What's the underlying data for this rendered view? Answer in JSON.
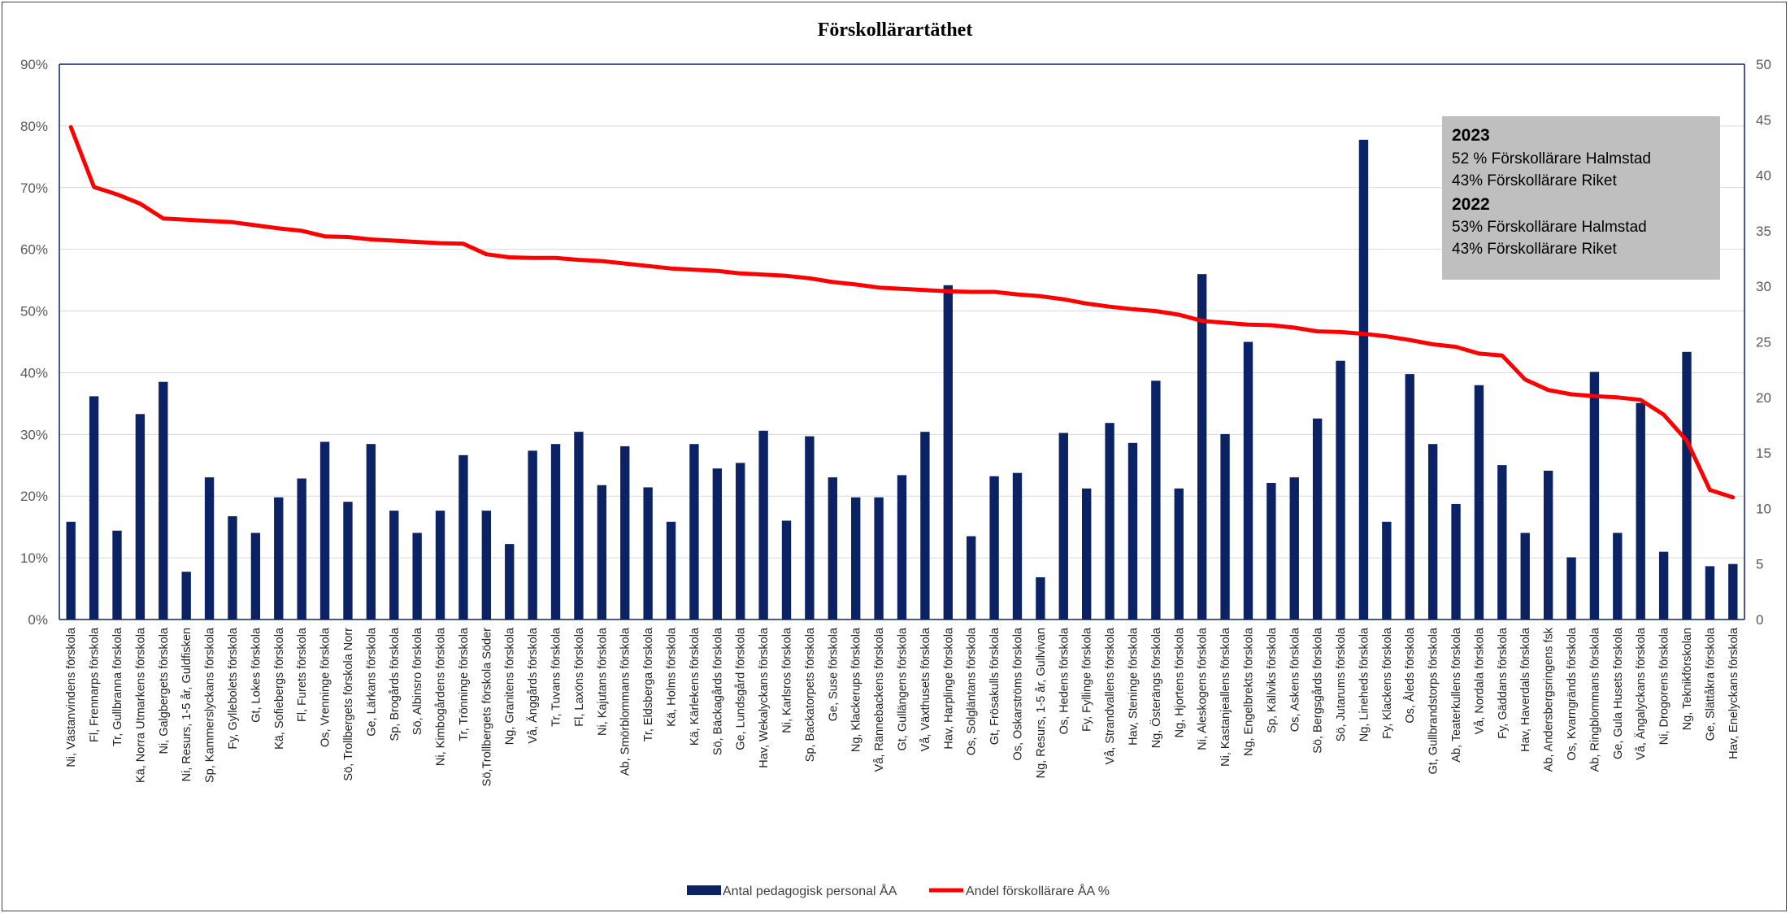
{
  "chart_data": {
    "type": "bar+line",
    "title": "Förskollärartäthet",
    "left_axis": {
      "ticks": [
        "0%",
        "10%",
        "20%",
        "30%",
        "40%",
        "50%",
        "60%",
        "70%",
        "80%",
        "90%"
      ],
      "range": [
        0,
        90
      ],
      "unit": "%"
    },
    "right_axis": {
      "ticks": [
        "0",
        "5",
        "10",
        "15",
        "20",
        "25",
        "30",
        "35",
        "40",
        "45",
        "50"
      ],
      "range": [
        0,
        50
      ]
    },
    "grid": true,
    "legend_position": "bottom",
    "categories": [
      "Ni, Västanvindens förskola",
      "Fl, Frennarps förskola",
      "Tr, Gullbranna förskola",
      "Kä, Norra Utmarkens förskola",
      "Ni, Galgbergets förskola",
      "Ni, Resurs, 1-5 år, Guldfisken",
      "Sp, Kammerslyckans förskola",
      "Fy, Gyllebolets förskola",
      "Gt, Lokes förskola",
      "Kä, Sofiebergs förskola",
      "Fl, Furets förskola",
      "Os, Vrenninge förskola",
      "Sö, Trollbergets förskola Norr",
      "Ge, Lärkans förskola",
      "Sp, Brogårds förskola",
      "Sö, Albinsro förskola",
      "Ni, Kimbogårdens förskola",
      "Tr, Trönninge förskola",
      "Sö,Trollbergets förskola Söder",
      "Ng, Granitens förskola",
      "Vå, Änggårds förskola",
      "Tr, Tuvans förskola",
      "Fl, Laxöns förskola",
      "Ni, Kajutans förskola",
      "Ab, Smörblommans förskola",
      "Tr, Eldsberga förskola",
      "Kä, Holms förskola",
      "Kä, Kärlekens förskola",
      "Sö, Bäckagårds förskola",
      "Ge, Lundsgård förskola",
      "Hav, Wekalyckans förskola",
      "Ni, Karlsros förskola",
      "Sp, Backatorpets förskola",
      "Ge, Suse förskola",
      "Ng, Klackerups förskola",
      "Vå, Rännebackens förskola",
      "Gt, Gullängens förskola",
      "Vå, Växthusets förskola",
      "Hav, Harplinge förskola",
      "Os, Solgläntans förskola",
      "Gt, Frösakulls förskola",
      "Os, Oskarströms förskola",
      "Ng, Resurs, 1-5 år, Gullvivan",
      "Os, Hedens förskola",
      "Fy, Fyllinge förskola",
      "Vå, Strandvallens förskola",
      "Hav, Steninge förskola",
      "Ng, Österängs förskola",
      "Ng, Hjortens förskola",
      "Ni, Aleskogens förskola",
      "Ni, Kastanjeallens förskola",
      "Ng, Engelbrekts förskola",
      "Sp, Källviks förskola",
      "Os, Askens förskola",
      "Sö, Bergsgårds förskola",
      "Sö, Jutarums förskola",
      "Ng, Lineheds förskola",
      "Fy, Klackens förskola",
      "Os, Åleds förskola",
      "Gt, Gullbrandstorps förskola",
      "Ab, Teaterkullens förskola",
      "Vå, Nordala förskola",
      "Fy, Gäddans förskola",
      "Hav, Haverdals förskola",
      "Ab, Andersbergsringens fsk",
      "Os, Kvarngränds förskola",
      "Ab, Ringblommans förskola",
      "Ge, Gula Husets förskola",
      "Vå, Ängalyckans förskola",
      "Ni, Drogorens förskola",
      "Ng, Teknikförskolan",
      "Ge, Slättåkra förskola",
      "Hav, Enelyckans förskola"
    ],
    "series": [
      {
        "name": "Antal pedagogisk personal ÅA",
        "type": "bar",
        "axis": "right",
        "color": "#0b2364",
        "values": [
          8.8,
          20.1,
          8.0,
          18.5,
          21.4,
          4.3,
          12.8,
          9.3,
          7.8,
          11.0,
          12.7,
          16.0,
          10.6,
          15.8,
          9.8,
          7.8,
          9.8,
          14.8,
          9.8,
          6.8,
          15.2,
          15.8,
          16.9,
          12.1,
          15.6,
          11.9,
          8.8,
          15.8,
          13.6,
          14.1,
          17.0,
          8.9,
          16.5,
          12.8,
          11.0,
          11.0,
          13.0,
          16.9,
          30.1,
          7.5,
          12.9,
          13.2,
          3.8,
          16.8,
          11.8,
          17.7,
          15.9,
          21.5,
          11.8,
          31.1,
          16.7,
          25.0,
          12.3,
          12.8,
          18.1,
          23.3,
          43.2,
          8.8,
          22.1,
          15.8,
          10.4,
          21.1,
          13.9,
          7.8,
          13.4,
          5.6,
          22.3,
          7.8,
          19.5,
          6.1,
          24.1,
          4.8,
          5.0
        ]
      },
      {
        "name": "Andel förskollärare ÅA %",
        "type": "line",
        "axis": "left",
        "color": "#ff0000",
        "values": [
          79.8,
          70.1,
          68.9,
          67.4,
          65.0,
          64.8,
          64.6,
          64.4,
          63.9,
          63.4,
          63.0,
          62.1,
          62.0,
          61.6,
          61.4,
          61.2,
          61.0,
          60.9,
          59.2,
          58.7,
          58.6,
          58.6,
          58.3,
          58.1,
          57.7,
          57.3,
          56.9,
          56.7,
          56.5,
          56.1,
          55.9,
          55.7,
          55.3,
          54.7,
          54.3,
          53.8,
          53.6,
          53.4,
          53.2,
          53.1,
          53.1,
          52.7,
          52.4,
          51.9,
          51.2,
          50.7,
          50.3,
          50.0,
          49.4,
          48.4,
          48.1,
          47.8,
          47.7,
          47.3,
          46.7,
          46.6,
          46.3,
          45.9,
          45.3,
          44.6,
          44.2,
          43.1,
          42.8,
          38.9,
          37.2,
          36.5,
          36.2,
          36.0,
          35.6,
          33.2,
          29.0,
          21.0,
          19.8
        ]
      }
    ],
    "annotation": {
      "lines": [
        {
          "text": "2023",
          "bold": true
        },
        {
          "text": "52 % Förskollärare Halmstad",
          "bold": false
        },
        {
          "text": "43% Förskollärare Riket",
          "bold": false
        },
        {
          "text": "2022",
          "bold": true
        },
        {
          "text": "53% Förskollärare Halmstad",
          "bold": false
        },
        {
          "text": "43% Förskollärare Riket",
          "bold": false
        }
      ]
    }
  }
}
